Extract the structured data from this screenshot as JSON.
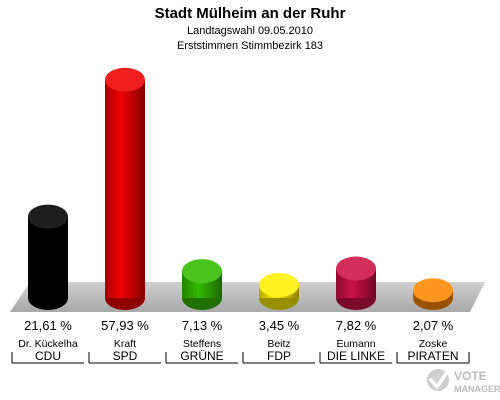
{
  "chart_data": {
    "type": "bar",
    "title": "Stadt Mülheim an der Ruhr",
    "subtitle_lines": [
      "Landtagswahl 09.05.2010",
      "Erststimmen Stimmbezirk 183"
    ],
    "ylim": [
      0,
      60
    ],
    "bars": [
      {
        "candidate": "Dr. Kückelha",
        "party": "CDU",
        "value": 21.61,
        "label": "21,61 %",
        "color": "#000000"
      },
      {
        "candidate": "Kraft",
        "party": "SPD",
        "value": 57.93,
        "label": "57,93 %",
        "color": "#ee0000"
      },
      {
        "candidate": "Steffens",
        "party": "GRÜNE",
        "value": 7.13,
        "label": "7,13 %",
        "color": "#33bb00"
      },
      {
        "candidate": "Beitz",
        "party": "FDP",
        "value": 3.45,
        "label": "3,45 %",
        "color": "#ffee00"
      },
      {
        "candidate": "Eumann",
        "party": "DIE LINKE",
        "value": 7.82,
        "label": "7,82 %",
        "color": "#cc1144"
      },
      {
        "candidate": "Zoske",
        "party": "PIRATEN",
        "value": 2.07,
        "label": "2,07 %",
        "color": "#ff8800"
      }
    ]
  },
  "watermark": {
    "text_top": "VOTE",
    "text_bottom": "MANAGER"
  }
}
